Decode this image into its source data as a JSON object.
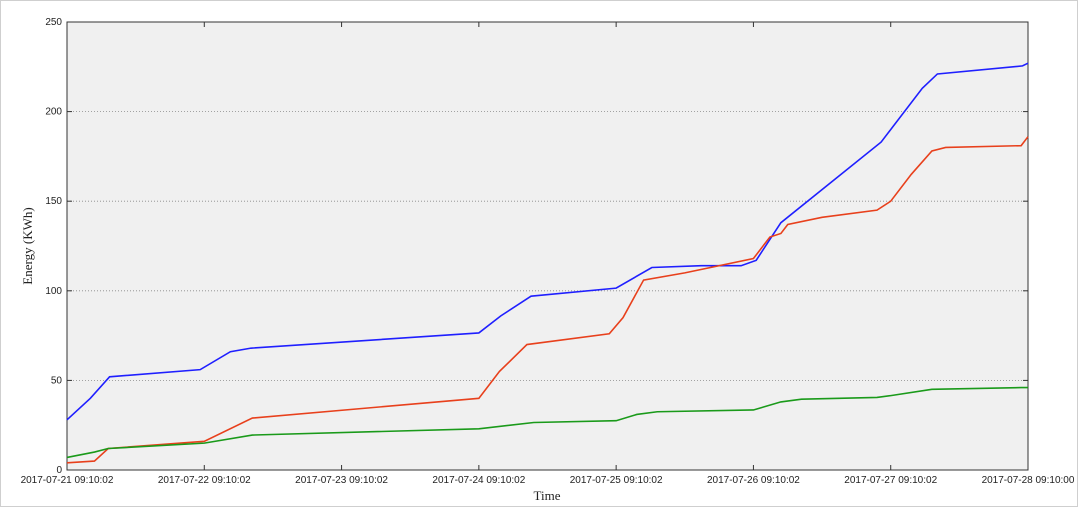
{
  "chart_data": {
    "type": "line",
    "xlabel": "Time",
    "ylabel": "Energy (KWh)",
    "xlim": [
      0,
      7
    ],
    "ylim": [
      0,
      250
    ],
    "xticks": [
      {
        "value": 0,
        "label": "2017-07-21 09:10:02"
      },
      {
        "value": 1,
        "label": "2017-07-22 09:10:02"
      },
      {
        "value": 2,
        "label": "2017-07-23 09:10:02"
      },
      {
        "value": 3,
        "label": "2017-07-24 09:10:02"
      },
      {
        "value": 4,
        "label": "2017-07-25 09:10:02"
      },
      {
        "value": 5,
        "label": "2017-07-26 09:10:02"
      },
      {
        "value": 6,
        "label": "2017-07-27 09:10:02"
      },
      {
        "value": 7,
        "label": "2017-07-28 09:10:00"
      }
    ],
    "yticks": [
      0,
      50,
      100,
      150,
      200,
      250
    ],
    "grid": true,
    "series": [
      {
        "color": "#1f1fff",
        "x": [
          0,
          0.17,
          0.31,
          0.97,
          1.19,
          1.34,
          3,
          3.16,
          3.38,
          4,
          4.26,
          4.62,
          4.91,
          5.02,
          5.2,
          5.93,
          6.23,
          6.34,
          6.96,
          7
        ],
        "values": [
          28,
          40,
          52,
          56,
          66,
          68,
          76.5,
          86,
          97,
          101.5,
          113,
          114,
          114,
          117,
          138,
          183,
          213,
          221,
          225.5,
          227
        ]
      },
      {
        "color": "#e8401c",
        "x": [
          0,
          0.2,
          0.3,
          1,
          1.35,
          3,
          3.15,
          3.35,
          3.95,
          4.05,
          4.2,
          4.5,
          5,
          5.12,
          5.2,
          5.25,
          5.5,
          5.9,
          6,
          6.15,
          6.3,
          6.4,
          6.95,
          7
        ],
        "values": [
          4,
          5,
          12,
          16,
          29,
          40,
          55,
          70,
          76,
          85,
          106,
          110,
          118,
          130,
          132,
          137,
          141,
          145,
          150,
          165,
          178,
          180,
          181,
          186
        ]
      },
      {
        "color": "#1a9a1a",
        "x": [
          0,
          0.2,
          0.3,
          1,
          1.35,
          3,
          3.4,
          4,
          4.15,
          4.3,
          5,
          5.2,
          5.35,
          5.9,
          6,
          6.3,
          6.95,
          7
        ],
        "values": [
          7,
          10,
          12,
          15,
          19.5,
          23,
          26.5,
          27.5,
          31,
          32.5,
          33.5,
          38,
          39.5,
          40.5,
          41.5,
          45,
          46,
          46
        ]
      }
    ]
  }
}
